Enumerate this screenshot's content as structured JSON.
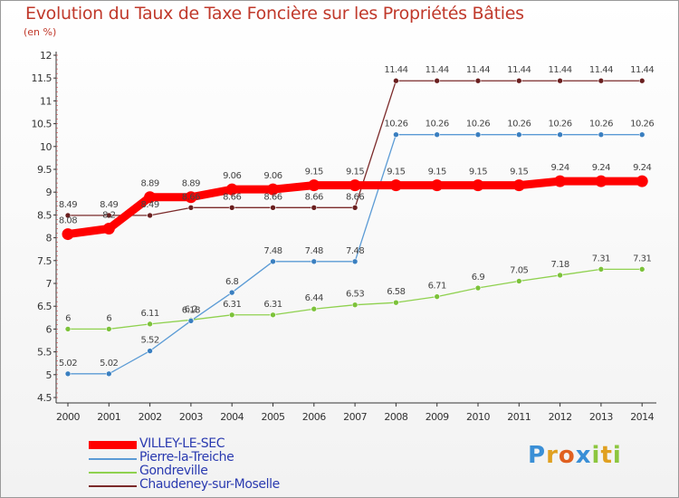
{
  "chart_data": {
    "type": "line",
    "title": "Evolution du Taux de Taxe Foncière sur les Propriétés Bâties",
    "ylabel": "(en %)",
    "xlabel": "",
    "categories": [
      "2000",
      "2001",
      "2002",
      "2003",
      "2004",
      "2005",
      "2006",
      "2007",
      "2008",
      "2009",
      "2010",
      "2011",
      "2012",
      "2013",
      "2014"
    ],
    "ylim": [
      4.5,
      12
    ],
    "yticks": [
      "4.5",
      "5",
      "5.5",
      "6",
      "6.5",
      "7",
      "7.5",
      "8",
      "8.5",
      "9",
      "9.5",
      "10",
      "10.5",
      "11",
      "11.5",
      "12"
    ],
    "grid": false,
    "legend_position": "bottom-left",
    "series": [
      {
        "name": "VILLEY-LE-SEC",
        "color": "#ff0000",
        "values": [
          8.08,
          8.2,
          8.89,
          8.89,
          9.06,
          9.06,
          9.15,
          9.15,
          9.15,
          9.15,
          9.15,
          9.15,
          9.24,
          9.24,
          9.24
        ],
        "labels": [
          "8.08",
          "8.2",
          "8.89",
          "8.89",
          "9.06",
          "9.06",
          "9.15",
          "9.15",
          "9.15",
          "9.15",
          "9.15",
          "9.15",
          "9.24",
          "9.24",
          "9.24"
        ]
      },
      {
        "name": "Pierre-la-Treiche",
        "color": "#5b9bd5",
        "values": [
          5.02,
          5.02,
          5.52,
          6.18,
          6.8,
          7.48,
          7.48,
          7.48,
          10.26,
          10.26,
          10.26,
          10.26,
          10.26,
          10.26,
          10.26
        ],
        "labels": [
          "5.02",
          "5.02",
          "5.52",
          "6.18",
          "6.8",
          "7.48",
          "7.48",
          "7.48",
          "10.26",
          "10.26",
          "10.26",
          "10.26",
          "10.26",
          "10.26",
          "10.26"
        ]
      },
      {
        "name": "Gondreville",
        "color": "#8fd14f",
        "values": [
          6,
          6,
          6.11,
          6.2,
          6.31,
          6.31,
          6.44,
          6.53,
          6.58,
          6.71,
          6.9,
          7.05,
          7.18,
          7.31,
          7.31
        ],
        "labels": [
          "6",
          "6",
          "6.11",
          "6.2",
          "6.31",
          "6.31",
          "6.44",
          "6.53",
          "6.58",
          "6.71",
          "6.9",
          "7.05",
          "7.18",
          "7.31",
          "7.31"
        ]
      },
      {
        "name": "Chaudeney-sur-Moselle",
        "color": "#7b2a2a",
        "values": [
          8.49,
          8.49,
          8.49,
          8.66,
          8.66,
          8.66,
          8.66,
          8.66,
          11.44,
          11.44,
          11.44,
          11.44,
          11.44,
          11.44,
          11.44
        ],
        "labels": [
          "8.49",
          "8.49",
          "8.49",
          "8.66",
          "8.66",
          "8.66",
          "8.66",
          "8.66",
          "11.44",
          "11.44",
          "11.44",
          "11.44",
          "11.44",
          "11.44",
          "11.44"
        ]
      }
    ]
  },
  "logo": {
    "p": "P",
    "r": "r",
    "o": "o",
    "x": "x",
    "i": "i",
    "t": "t",
    "i2": "i"
  }
}
